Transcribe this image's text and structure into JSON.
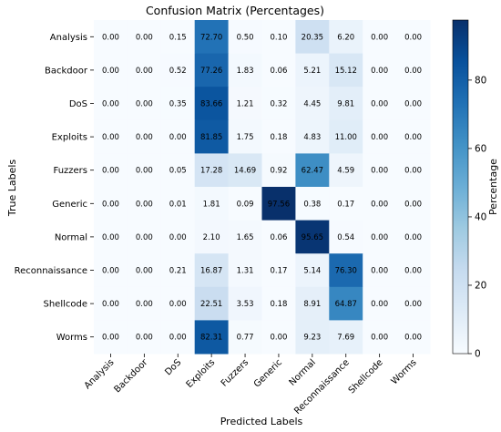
{
  "chart_data": {
    "type": "heatmap",
    "title": "Confusion Matrix (Percentages)",
    "xlabel": "Predicted Labels",
    "ylabel": "True Labels",
    "x_categories": [
      "Analysis",
      "Backdoor",
      "DoS",
      "Exploits",
      "Fuzzers",
      "Generic",
      "Normal",
      "Reconnaissance",
      "Shellcode",
      "Worms"
    ],
    "y_categories": [
      "Analysis",
      "Backdoor",
      "DoS",
      "Exploits",
      "Fuzzers",
      "Generic",
      "Normal",
      "Reconnaissance",
      "Shellcode",
      "Worms"
    ],
    "values": [
      [
        0.0,
        0.0,
        0.15,
        72.7,
        0.5,
        0.1,
        20.35,
        6.2,
        0.0,
        0.0
      ],
      [
        0.0,
        0.0,
        0.52,
        77.26,
        1.83,
        0.06,
        5.21,
        15.12,
        0.0,
        0.0
      ],
      [
        0.0,
        0.0,
        0.35,
        83.66,
        1.21,
        0.32,
        4.45,
        9.81,
        0.0,
        0.0
      ],
      [
        0.0,
        0.0,
        0.0,
        81.85,
        1.75,
        0.18,
        4.83,
        11.0,
        0.0,
        0.0
      ],
      [
        0.0,
        0.0,
        0.05,
        17.28,
        14.69,
        0.92,
        62.47,
        4.59,
        0.0,
        0.0
      ],
      [
        0.0,
        0.0,
        0.01,
        1.81,
        0.09,
        97.56,
        0.38,
        0.17,
        0.0,
        0.0
      ],
      [
        0.0,
        0.0,
        0.0,
        2.1,
        1.65,
        0.06,
        95.65,
        0.54,
        0.0,
        0.0
      ],
      [
        0.0,
        0.0,
        0.21,
        16.87,
        1.31,
        0.17,
        5.14,
        76.3,
        0.0,
        0.0
      ],
      [
        0.0,
        0.0,
        0.0,
        22.51,
        3.53,
        0.18,
        8.91,
        64.87,
        0.0,
        0.0
      ],
      [
        0.0,
        0.0,
        0.0,
        82.31,
        0.77,
        0.0,
        9.23,
        7.69,
        0.0,
        0.0
      ]
    ],
    "colorbar": {
      "label": "Percentage",
      "min": 0,
      "max": 97.56,
      "ticks": [
        0,
        20,
        40,
        60,
        80
      ]
    },
    "colormap": [
      "#f7fbff",
      "#deebf7",
      "#c6dbef",
      "#9ecae1",
      "#6baed6",
      "#4292c6",
      "#2171b5",
      "#08519c",
      "#08306b"
    ]
  }
}
